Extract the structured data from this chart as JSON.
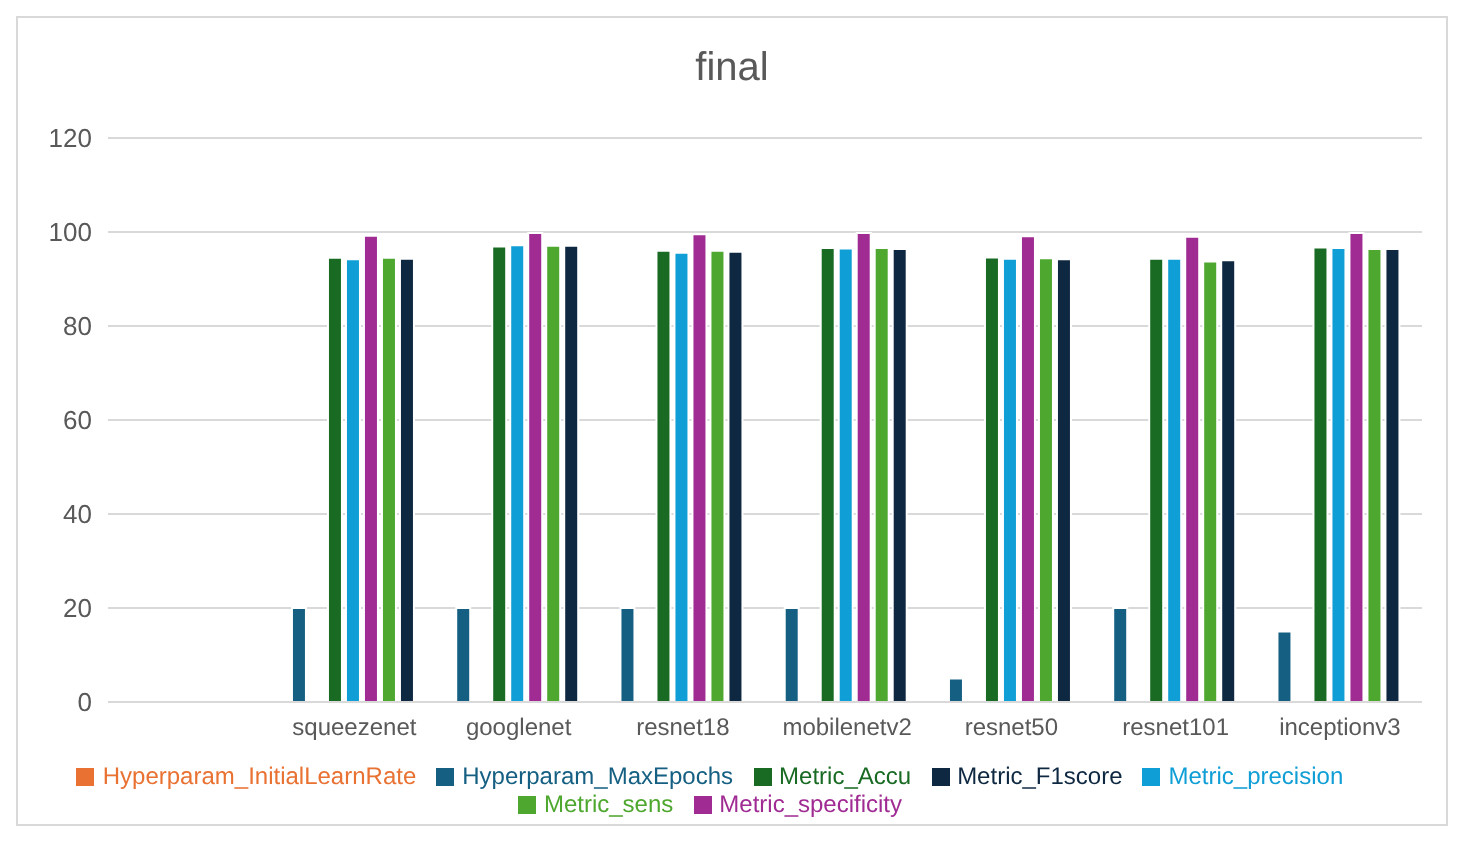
{
  "chart_data": {
    "type": "bar",
    "title": "final",
    "categories": [
      null,
      "squeezenet",
      "googlenet",
      "resnet18",
      "mobilenetv2",
      "resnet50",
      "resnet101",
      "inceptionv3"
    ],
    "series": [
      {
        "name": "Hyperparam_MaxEpochs",
        "color": "#156082",
        "values": [
          null,
          20,
          20,
          20,
          20,
          5,
          20,
          15
        ]
      },
      {
        "name": "Hyperparam_InitialLearnRate",
        "color": "#e97132",
        "values": [
          null,
          0,
          0,
          0,
          0,
          0,
          0,
          0
        ]
      },
      {
        "name": "Metric_Accu",
        "color": "#196b24",
        "values": [
          null,
          94.5,
          96.9,
          96,
          96.6,
          94.6,
          94.3,
          96.7
        ]
      },
      {
        "name": "Metric_precision",
        "color": "#0f9ed5",
        "values": [
          null,
          94.2,
          97.2,
          95.6,
          96.5,
          94.3,
          94.3,
          96.6
        ]
      },
      {
        "name": "Metric_specificity",
        "color": "#a02b93",
        "values": [
          null,
          99.2,
          99.8,
          99.5,
          99.8,
          99.1,
          99,
          99.8
        ]
      },
      {
        "name": "Metric_sens",
        "color": "#4ea72e",
        "values": [
          null,
          94.5,
          97.1,
          96,
          96.6,
          94.4,
          93.7,
          96.4
        ]
      },
      {
        "name": "Metric_F1score",
        "color": "#0e2841",
        "values": [
          null,
          94.3,
          97.1,
          95.8,
          96.4,
          94.2,
          94,
          96.4
        ]
      }
    ],
    "ylim": [
      0,
      120
    ],
    "yticks": [
      0,
      20,
      40,
      60,
      80,
      100,
      120
    ],
    "grid": "y",
    "legend": "bottom"
  }
}
